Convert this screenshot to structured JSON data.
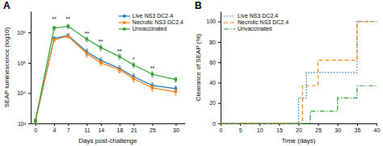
{
  "chart_data": [
    {
      "type": "line",
      "title": "A",
      "xlabel": "Days post-challenge",
      "ylabel": "SEAP luminescence (log10)",
      "x": [
        0,
        4,
        7,
        11,
        14,
        18,
        21,
        25,
        30
      ],
      "series": [
        {
          "name": "Live NS3 DC2.4",
          "marker": "square",
          "values": [
            1200,
            630000,
            800000,
            230000,
            120000,
            65000,
            35000,
            18000,
            14000
          ],
          "error_lo": [
            200,
            80000,
            100000,
            50000,
            25000,
            15000,
            8000,
            4000,
            3000
          ],
          "error_hi": [
            200,
            80000,
            100000,
            50000,
            25000,
            15000,
            8000,
            4000,
            3000
          ]
        },
        {
          "name": "Necrotic NS3 DC2.4",
          "marker": "square",
          "values": [
            1200,
            580000,
            750000,
            200000,
            100000,
            58000,
            30000,
            15000,
            11000
          ],
          "error_lo": [
            200,
            70000,
            90000,
            45000,
            20000,
            12000,
            7000,
            3500,
            2500
          ],
          "error_hi": [
            200,
            70000,
            90000,
            45000,
            20000,
            12000,
            7000,
            3500,
            2500
          ]
        },
        {
          "name": "Unvaccinated",
          "marker": "square",
          "values": [
            1200,
            1400000,
            1600000,
            600000,
            320000,
            160000,
            85000,
            42000,
            28000
          ],
          "error_lo": [
            200,
            200000,
            250000,
            100000,
            60000,
            30000,
            15000,
            8000,
            5000
          ],
          "error_hi": [
            200,
            200000,
            250000,
            100000,
            60000,
            30000,
            15000,
            8000,
            5000
          ]
        }
      ],
      "annotations": [
        {
          "x": 4,
          "y": 2200000,
          "text": "**"
        },
        {
          "x": 7,
          "y": 2200000,
          "text": "**"
        },
        {
          "x": 11,
          "y": 750000,
          "text": "**"
        },
        {
          "x": 14,
          "y": 400000,
          "text": "**"
        },
        {
          "x": 18,
          "y": 200000,
          "text": "**"
        },
        {
          "x": 21,
          "y": 105000,
          "text": "*"
        },
        {
          "x": 25,
          "y": 55000,
          "text": "**"
        }
      ],
      "xlim": [
        -1,
        32
      ],
      "xticks": [
        0,
        4,
        7,
        11,
        14,
        18,
        21,
        25,
        30
      ],
      "ylim": [
        1000,
        5000000
      ],
      "yticks": [
        {
          "value": 1000,
          "label": "10³"
        },
        {
          "value": 10000,
          "label": "10⁴"
        },
        {
          "value": 100000,
          "label": "10⁵"
        },
        {
          "value": 1000000,
          "label": "10⁶"
        }
      ],
      "log": "y",
      "legend": "upper right"
    },
    {
      "type": "line",
      "title": "B",
      "xlabel": "Time (days)",
      "ylabel": "Clearance of SEAP (%)",
      "series": [
        {
          "name": "Live NS3 DC2.4",
          "line_style": "dotted",
          "x": [
            0,
            20,
            20,
            22,
            22,
            35,
            35,
            40
          ],
          "values": [
            0,
            0,
            25,
            25,
            50,
            50,
            100,
            100
          ]
        },
        {
          "name": "Necrotic NS3 DC2.4",
          "line_style": "dashed",
          "x": [
            0,
            21,
            21,
            25,
            25,
            35,
            35,
            40
          ],
          "values": [
            0,
            0,
            37,
            37,
            62,
            62,
            100,
            100
          ]
        },
        {
          "name": "Unvaccinated",
          "line_style": "dashdot",
          "x": [
            0,
            23,
            23,
            30,
            30,
            35,
            35,
            40
          ],
          "values": [
            0,
            0,
            12,
            12,
            25,
            25,
            37,
            37
          ]
        }
      ],
      "xlim": [
        0,
        40
      ],
      "xticks": [
        0,
        5,
        10,
        15,
        20,
        25,
        30,
        35,
        40
      ],
      "ylim": [
        0,
        110
      ],
      "yticks": [
        0,
        20,
        40,
        60,
        80,
        100
      ],
      "legend": "upper left"
    }
  ]
}
